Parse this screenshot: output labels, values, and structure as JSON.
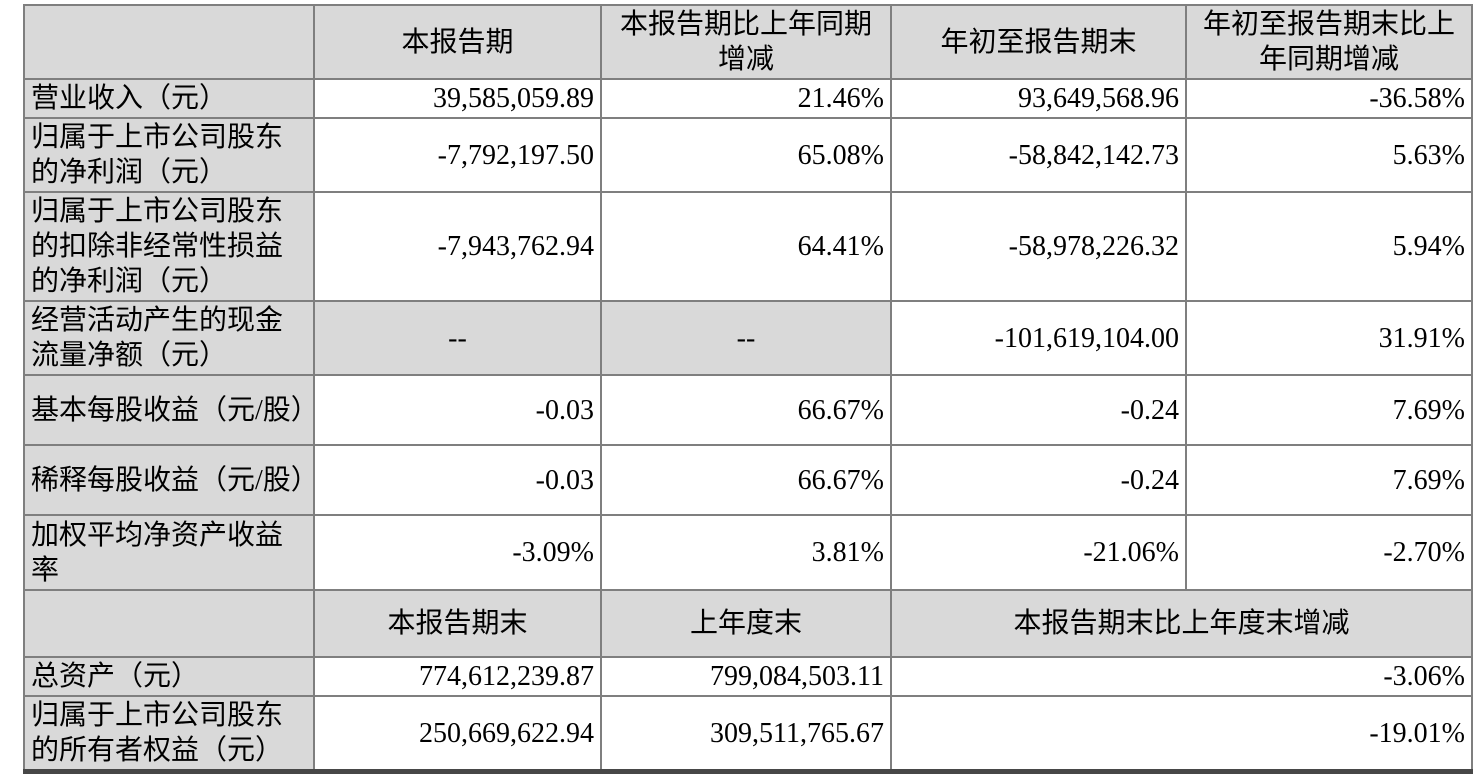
{
  "table": {
    "colors": {
      "header_bg": "#d9d9d9",
      "label_bg": "#d9d9d9",
      "value_bg": "#ffffff",
      "border": "#7f7f7f",
      "bottom_rule": "#474747",
      "text": "#000000"
    },
    "period_section": {
      "headers": {
        "current_period": "本报告期",
        "current_vs_prior_year": "本报告期比上年同期增减",
        "ytd": "年初至报告期末",
        "ytd_vs_prior_year": "年初至报告期末比上年同期增减"
      },
      "rows": [
        {
          "label": "营业收入（元）",
          "values": [
            "39,585,059.89",
            "21.46%",
            "93,649,568.96",
            "-36.58%"
          ]
        },
        {
          "label": "归属于上市公司股东的净利润（元）",
          "values": [
            "-7,792,197.50",
            "65.08%",
            "-58,842,142.73",
            "5.63%"
          ]
        },
        {
          "label": "归属于上市公司股东的扣除非经常性损益的净利润（元）",
          "values": [
            "-7,943,762.94",
            "64.41%",
            "-58,978,226.32",
            "5.94%"
          ]
        },
        {
          "label": "经营活动产生的现金流量净额（元）",
          "values": [
            "--",
            "--",
            "-101,619,104.00",
            "31.91%"
          ]
        },
        {
          "label": "基本每股收益（元/股）",
          "values": [
            "-0.03",
            "66.67%",
            "-0.24",
            "7.69%"
          ]
        },
        {
          "label": "稀释每股收益（元/股）",
          "values": [
            "-0.03",
            "66.67%",
            "-0.24",
            "7.69%"
          ]
        },
        {
          "label": "加权平均净资产收益率",
          "values": [
            "-3.09%",
            "3.81%",
            "-21.06%",
            "-2.70%"
          ]
        }
      ]
    },
    "position_section": {
      "headers": {
        "end_of_period": "本报告期末",
        "end_of_prior_year": "上年度末",
        "period_end_vs_prior_year_end": "本报告期末比上年度末增减"
      },
      "rows": [
        {
          "label": "总资产（元）",
          "values": [
            "774,612,239.87",
            "799,084,503.11",
            "-3.06%"
          ]
        },
        {
          "label": "归属于上市公司股东的所有者权益（元）",
          "values": [
            "250,669,622.94",
            "309,511,765.67",
            "-19.01%"
          ]
        }
      ]
    }
  }
}
